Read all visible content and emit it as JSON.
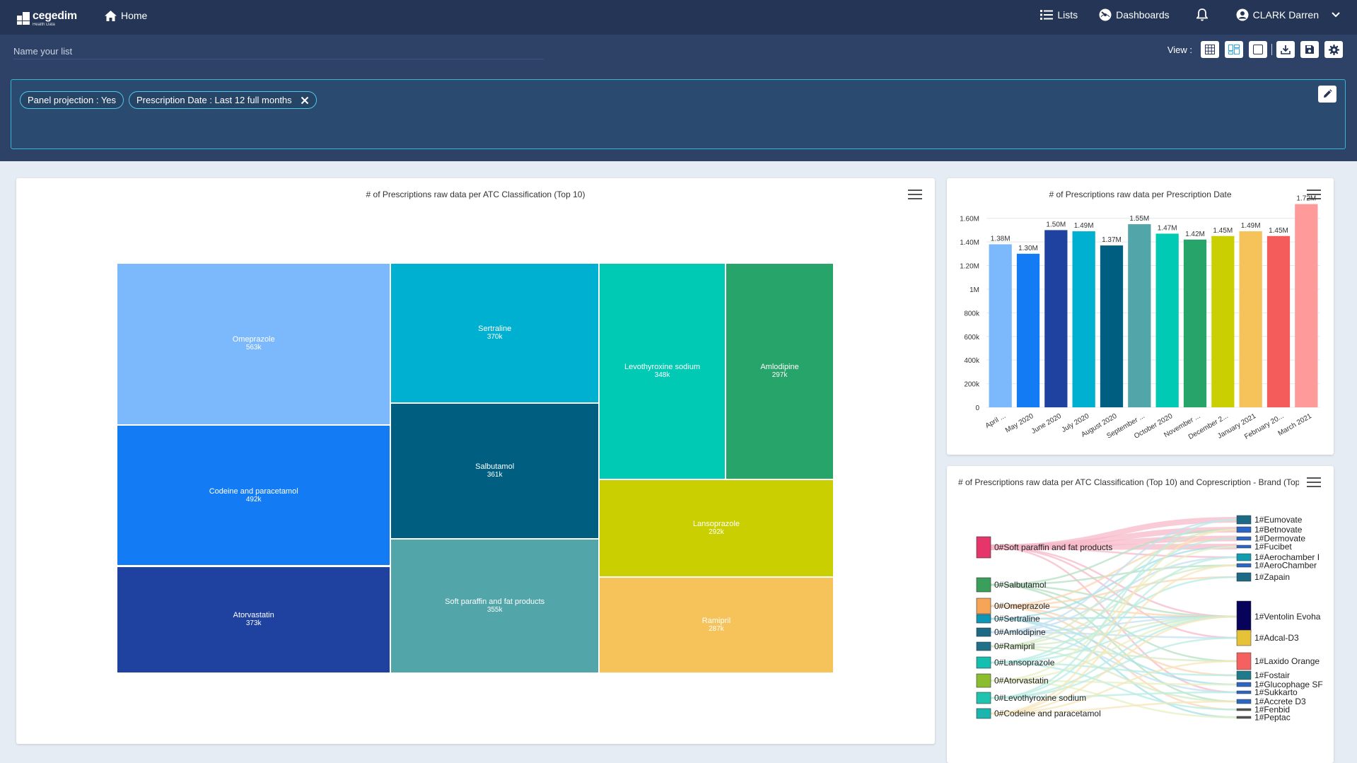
{
  "nav": {
    "logo_name": "cegedim",
    "logo_sub": "Health Data",
    "home_label": "Home",
    "lists_label": "Lists",
    "dashboards_label": "Dashboards",
    "user_name": "CLARK Darren"
  },
  "list": {
    "name_placeholder": "Name your list",
    "view_label": "View :"
  },
  "filters": [
    {
      "label": "Panel projection : Yes",
      "removable": false
    },
    {
      "label": "Prescription Date : Last 12 full months",
      "removable": true
    }
  ],
  "treemap": {
    "title": "# of Prescriptions raw data per ATC Classification (Top 10)",
    "chart_data": {
      "type": "treemap",
      "items": [
        {
          "name": "Omeprazole",
          "label": "563k",
          "value": 563000,
          "color": "#7cb9fc"
        },
        {
          "name": "Codeine and paracetamol",
          "label": "492k",
          "value": 492000,
          "color": "#137bf3"
        },
        {
          "name": "Atorvastatin",
          "label": "373k",
          "value": 373000,
          "color": "#1f42a0"
        },
        {
          "name": "Sertraline",
          "label": "370k",
          "value": 370000,
          "color": "#00b0d0"
        },
        {
          "name": "Salbutamol",
          "label": "361k",
          "value": 361000,
          "color": "#005f80"
        },
        {
          "name": "Soft paraffin and fat products",
          "label": "355k",
          "value": 355000,
          "color": "#52a5a8"
        },
        {
          "name": "Levothyroxine sodium",
          "label": "348k",
          "value": 348000,
          "color": "#00cab3"
        },
        {
          "name": "Amlodipine",
          "label": "297k",
          "value": 297000,
          "color": "#27a469"
        },
        {
          "name": "Lansoprazole",
          "label": "292k",
          "value": 292000,
          "color": "#c9cf00"
        },
        {
          "name": "Ramipril",
          "label": "287k",
          "value": 287000,
          "color": "#f6c25a"
        }
      ]
    }
  },
  "barchart": {
    "title": "# of Prescriptions raw data per Prescription Date",
    "chart_data": {
      "type": "bar",
      "categories": [
        "April ...",
        "May 2020",
        "June 2020",
        "July 2020",
        "August 2020",
        "September ...",
        "October 2020",
        "November ...",
        "December 2...",
        "January 2021",
        "February 20...",
        "March 2021"
      ],
      "values": [
        1.38,
        1.3,
        1.5,
        1.49,
        1.37,
        1.55,
        1.47,
        1.42,
        1.45,
        1.49,
        1.45,
        1.72
      ],
      "value_labels": [
        "1.38M",
        "1.30M",
        "1.50M",
        "1.49M",
        "1.37M",
        "1.55M",
        "1.47M",
        "1.42M",
        "1.45M",
        "1.49M",
        "1.45M",
        "1.72M"
      ],
      "colors": [
        "#7cb9fc",
        "#137bf3",
        "#1f42a0",
        "#00b0d0",
        "#005f80",
        "#52a5a8",
        "#00cab3",
        "#27a469",
        "#c9cf00",
        "#f6c25a",
        "#f45b5b",
        "#ff9a9a"
      ],
      "y_ticks": [
        "0",
        "200k",
        "400k",
        "600k",
        "800k",
        "1M",
        "1.20M",
        "1.40M",
        "1.60M"
      ],
      "ylim": [
        0,
        1.7
      ],
      "grid": true
    }
  },
  "sankey": {
    "title": "# of Prescriptions raw data per ATC Classification (Top 10) and Coprescription - Brand (Top",
    "chart_data": {
      "type": "sankey",
      "sources": [
        {
          "name": "0#Soft paraffin and fat products",
          "color": "#e5356b"
        },
        {
          "name": "0#Salbutamol",
          "color": "#3a9f5a"
        },
        {
          "name": "0#Omeprazole",
          "color": "#f6a458"
        },
        {
          "name": "0#Sertraline",
          "color": "#0d96b5"
        },
        {
          "name": "0#Amlodipine",
          "color": "#1c6a85"
        },
        {
          "name": "0#Ramipril",
          "color": "#21708a"
        },
        {
          "name": "0#Lansoprazole",
          "color": "#14bfb0"
        },
        {
          "name": "0#Atorvastatin",
          "color": "#8cbd2e"
        },
        {
          "name": "0#Levothyroxine sodium",
          "color": "#1fc3ae"
        },
        {
          "name": "0#Codeine and paracetamol",
          "color": "#1ab6ae"
        }
      ],
      "targets": [
        {
          "name": "1#Eumovate",
          "color": "#1c6a85"
        },
        {
          "name": "1#Betnovate",
          "color": "#2c66c5"
        },
        {
          "name": "1#Dermovate",
          "color": "#2c66c5"
        },
        {
          "name": "1#Fucibet",
          "color": "#2c66c5"
        },
        {
          "name": "1#Aerochamber I",
          "color": "#119db0"
        },
        {
          "name": "1#AeroChamber",
          "color": "#2c66c5"
        },
        {
          "name": "1#Zapain",
          "color": "#1c6a85"
        },
        {
          "name": "1#Ventolin Evoha",
          "color": "#07035a"
        },
        {
          "name": "1#Adcal-D3",
          "color": "#e6c236"
        },
        {
          "name": "1#Laxido Orange",
          "color": "#f56160"
        },
        {
          "name": "1#Fostair",
          "color": "#1f7a8c"
        },
        {
          "name": "1#Glucophage SF",
          "color": "#2c66c5"
        },
        {
          "name": "1#Sukkarto",
          "color": "#2c66c5"
        },
        {
          "name": "1#Accrete D3",
          "color": "#2c66c5"
        },
        {
          "name": "1#Fenbid",
          "color": "#555555"
        },
        {
          "name": "1#Peptac",
          "color": "#555555"
        }
      ]
    }
  }
}
